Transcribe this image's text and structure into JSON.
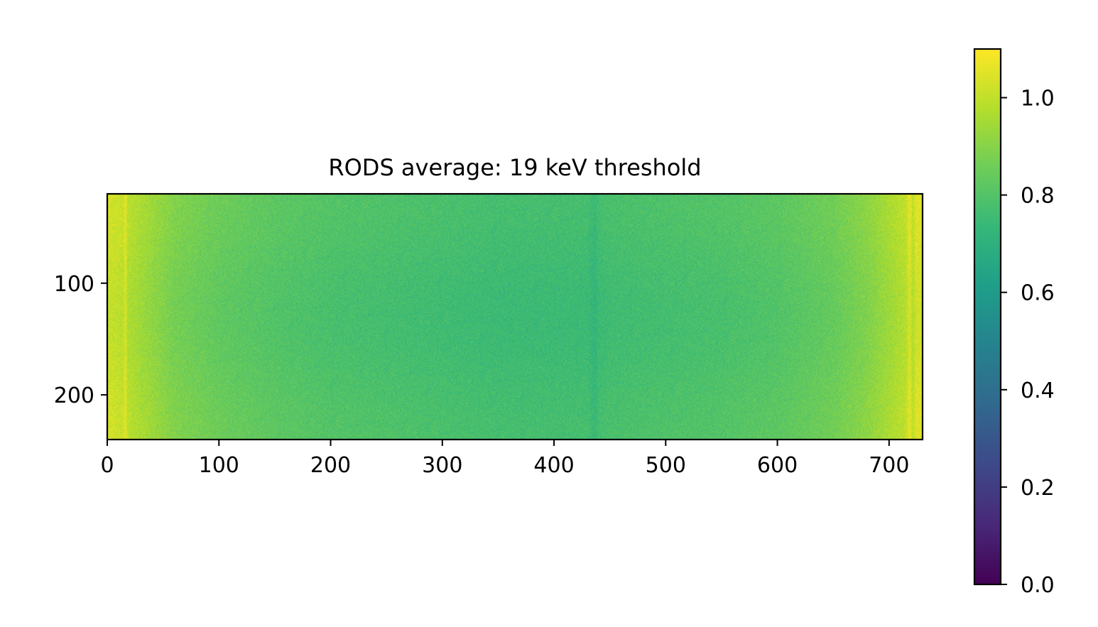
{
  "chart_data": {
    "type": "heatmap",
    "title": "RODS average: 19 keV threshold",
    "xlabel": "",
    "ylabel": "",
    "x_range": [
      0,
      730
    ],
    "y_range": [
      20,
      240
    ],
    "y_inverted": true,
    "x_ticks": [
      0,
      100,
      200,
      300,
      400,
      500,
      600,
      700
    ],
    "x_tick_labels": [
      "0",
      "100",
      "200",
      "300",
      "400",
      "500",
      "600",
      "700"
    ],
    "y_ticks": [
      100,
      200
    ],
    "y_tick_labels": [
      "100",
      "200"
    ],
    "colormap": "viridis",
    "color_range": [
      0.0,
      1.1
    ],
    "colorbar_ticks": [
      0.0,
      0.2,
      0.4,
      0.6,
      0.8,
      1.0
    ],
    "colorbar_tick_labels": [
      "0.0",
      "0.2",
      "0.4",
      "0.6",
      "0.8",
      "1.0"
    ],
    "column_profile": {
      "x": [
        0,
        14,
        16,
        18,
        30,
        60,
        100,
        150,
        200,
        250,
        300,
        350,
        400,
        430,
        436,
        440,
        450,
        500,
        550,
        600,
        650,
        680,
        700,
        715,
        718,
        721,
        724,
        730
      ],
      "values": [
        1.02,
        1.0,
        1.05,
        0.98,
        0.95,
        0.88,
        0.84,
        0.81,
        0.79,
        0.78,
        0.77,
        0.76,
        0.76,
        0.76,
        0.73,
        0.76,
        0.77,
        0.78,
        0.79,
        0.81,
        0.85,
        0.9,
        0.95,
        0.99,
        1.05,
        0.98,
        1.04,
        1.03
      ]
    },
    "grid": false
  },
  "colors": {
    "axes_edge": "#000000",
    "background": "#ffffff"
  }
}
